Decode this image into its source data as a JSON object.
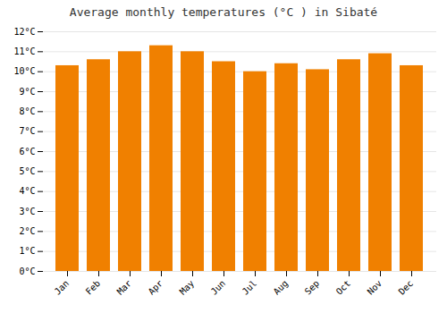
{
  "chart_data": {
    "type": "bar",
    "title": "Average monthly temperatures (°C ) in Sibaté",
    "categories": [
      "Jan",
      "Feb",
      "Mar",
      "Apr",
      "May",
      "Jun",
      "Jul",
      "Aug",
      "Sep",
      "Oct",
      "Nov",
      "Dec"
    ],
    "values": [
      10.3,
      10.6,
      11.0,
      11.3,
      11.0,
      10.5,
      10.0,
      10.4,
      10.1,
      10.6,
      10.9,
      10.3
    ],
    "color": "#F08000",
    "ylim": [
      0,
      12
    ],
    "yticks": [
      {
        "value": 0,
        "label": "0°C"
      },
      {
        "value": 1,
        "label": "1°C"
      },
      {
        "value": 2,
        "label": "2°C"
      },
      {
        "value": 3,
        "label": "3°C"
      },
      {
        "value": 4,
        "label": "4°C"
      },
      {
        "value": 5,
        "label": "5°C"
      },
      {
        "value": 6,
        "label": "6°C"
      },
      {
        "value": 7,
        "label": "7°C"
      },
      {
        "value": 8,
        "label": "8°C"
      },
      {
        "value": 9,
        "label": "9°C"
      },
      {
        "value": 10,
        "label": "10°C"
      },
      {
        "value": 11,
        "label": "11°C"
      },
      {
        "value": 12,
        "label": "12°C"
      }
    ],
    "grid": true
  }
}
